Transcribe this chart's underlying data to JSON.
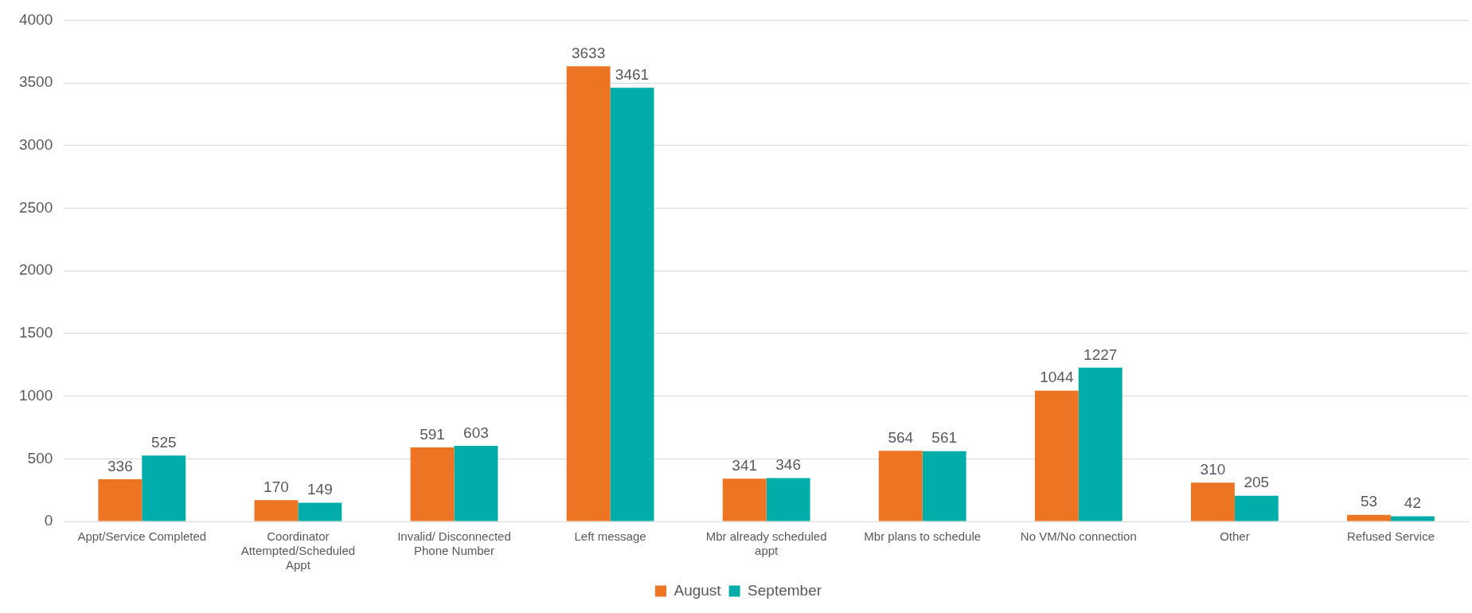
{
  "chart_data": {
    "type": "bar",
    "categories": [
      "Appt/Service Completed",
      "Coordinator Attempted/Scheduled Appt",
      "Invalid/ Disconnected Phone Number",
      "Left message",
      "Mbr already scheduled appt",
      "Mbr plans to schedule",
      "No VM/No connection",
      "Other",
      "Refused Service"
    ],
    "series": [
      {
        "name": "August",
        "color": "#ed7422",
        "values": [
          336,
          170,
          591,
          3633,
          341,
          564,
          1044,
          310,
          53
        ]
      },
      {
        "name": "September",
        "color": "#00ada9",
        "values": [
          525,
          149,
          603,
          3461,
          346,
          561,
          1227,
          205,
          42
        ]
      }
    ],
    "ylim": [
      0,
      4000
    ],
    "yticks": [
      0,
      500,
      1000,
      1500,
      2000,
      2500,
      3000,
      3500,
      4000
    ],
    "grid": "y",
    "legend": "bottom",
    "data_labels": true
  }
}
